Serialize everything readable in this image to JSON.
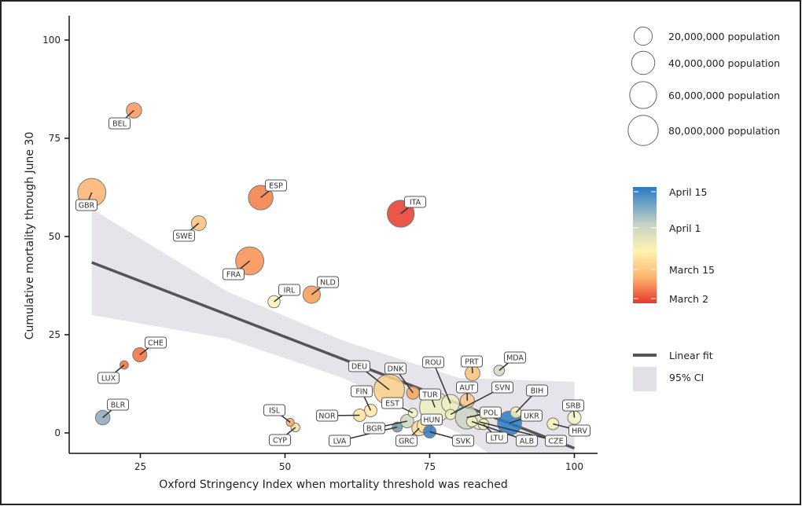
{
  "chart_data": {
    "type": "scatter",
    "xlabel": "Oxford Stringency Index when mortality threshold was reached",
    "ylabel": "Cumulative mortality through June 30",
    "xlim": [
      12.7,
      104
    ],
    "ylim": [
      -5,
      106
    ],
    "xticks": [
      25,
      50,
      75,
      100
    ],
    "yticks": [
      0,
      25,
      50,
      75,
      100
    ],
    "grid": false,
    "points": [
      {
        "code": "BEL",
        "x": 23.9,
        "y": 82.1,
        "population_millions": 11.5,
        "color": "#f9955a"
      },
      {
        "code": "GBR",
        "x": 16.6,
        "y": 61.2,
        "population_millions": 67,
        "color": "#fdb26e"
      },
      {
        "code": "ESP",
        "x": 45.8,
        "y": 59.9,
        "population_millions": 47,
        "color": "#f57b42"
      },
      {
        "code": "SWE",
        "x": 35.1,
        "y": 53.4,
        "population_millions": 10.3,
        "color": "#fdbf7a"
      },
      {
        "code": "FRA",
        "x": 43.9,
        "y": 43.8,
        "population_millions": 67,
        "color": "#f98d50"
      },
      {
        "code": "ITA",
        "x": 70.0,
        "y": 55.8,
        "population_millions": 60,
        "color": "#e8372a"
      },
      {
        "code": "IRL",
        "x": 48.1,
        "y": 33.4,
        "population_millions": 4.9,
        "color": "#fbf3b5"
      },
      {
        "code": "NLD",
        "x": 54.6,
        "y": 35.2,
        "population_millions": 17.3,
        "color": "#f99a55"
      },
      {
        "code": "CHE",
        "x": 24.9,
        "y": 19.9,
        "population_millions": 8.6,
        "color": "#f26d37"
      },
      {
        "code": "LUX",
        "x": 22.2,
        "y": 17.3,
        "population_millions": 0.6,
        "color": "#f26d37"
      },
      {
        "code": "BLR",
        "x": 18.5,
        "y": 3.9,
        "population_millions": 9.4,
        "color": "#8ea8b8"
      },
      {
        "code": "ISL",
        "x": 50.9,
        "y": 2.7,
        "population_millions": 0.4,
        "color": "#f9a65c"
      },
      {
        "code": "CYP",
        "x": 51.8,
        "y": 1.4,
        "population_millions": 0.9,
        "color": "#fde09a"
      },
      {
        "code": "NOR",
        "x": 62.9,
        "y": 4.5,
        "population_millions": 5.4,
        "color": "#fde39a"
      },
      {
        "code": "FIN",
        "x": 64.8,
        "y": 5.7,
        "population_millions": 5.5,
        "color": "#fdeaa5"
      },
      {
        "code": "DEU",
        "x": 68.0,
        "y": 11.0,
        "population_millions": 83,
        "color": "#fdd08a"
      },
      {
        "code": "DNK",
        "x": 72.1,
        "y": 10.2,
        "population_millions": 5.8,
        "color": "#f9a35b"
      },
      {
        "code": "EST",
        "x": 72.1,
        "y": 5.1,
        "population_millions": 1.3,
        "color": "#f3f3bd"
      },
      {
        "code": "BGR",
        "x": 71.1,
        "y": 3.0,
        "population_millions": 7.0,
        "color": "#cdd6c0"
      },
      {
        "code": "LVA",
        "x": 69.4,
        "y": 1.5,
        "population_millions": 1.9,
        "color": "#6f97a7"
      },
      {
        "code": "TUR",
        "x": 75.9,
        "y": 6.5,
        "population_millions": 83,
        "color": "#eef0c0"
      },
      {
        "code": "GRC",
        "x": 73.2,
        "y": 1.2,
        "population_millions": 10.7,
        "color": "#fdd89a"
      },
      {
        "code": "HUN",
        "x": 74.1,
        "y": 1.9,
        "population_millions": 9.8,
        "color": "#fde3a0"
      },
      {
        "code": "SVK",
        "x": 75.0,
        "y": 0.3,
        "population_millions": 5.5,
        "color": "#2f7bc0"
      },
      {
        "code": "ROU",
        "x": 78.6,
        "y": 7.5,
        "population_millions": 19.4,
        "color": "#eef0c0"
      },
      {
        "code": "AUT",
        "x": 81.5,
        "y": 8.2,
        "population_millions": 8.9,
        "color": "#fdc787"
      },
      {
        "code": "PRT",
        "x": 82.4,
        "y": 15.2,
        "population_millions": 10.3,
        "color": "#fdc078"
      },
      {
        "code": "MDA",
        "x": 87.0,
        "y": 15.9,
        "population_millions": 2.7,
        "color": "#d2d8c2"
      },
      {
        "code": "SVN",
        "x": 78.6,
        "y": 4.7,
        "population_millions": 2.1,
        "color": "#f6f2be"
      },
      {
        "code": "POL",
        "x": 81.4,
        "y": 3.9,
        "population_millions": 38,
        "color": "#ccd5c0"
      },
      {
        "code": "CZE",
        "x": 83.6,
        "y": 2.8,
        "population_millions": 10.7,
        "color": "#f4f0b8"
      },
      {
        "code": "LTU",
        "x": 84.3,
        "y": 2.2,
        "population_millions": 2.8,
        "color": "#f7f2b8"
      },
      {
        "code": "ALB",
        "x": 82.3,
        "y": 2.9,
        "population_millions": 2.9,
        "color": "#f4f2c0"
      },
      {
        "code": "BIH",
        "x": 89.9,
        "y": 5.2,
        "population_millions": 3.3,
        "color": "#f6f0b8"
      },
      {
        "code": "UKR",
        "x": 88.8,
        "y": 2.5,
        "population_millions": 44,
        "color": "#2a7bc4"
      },
      {
        "code": "HRV",
        "x": 96.3,
        "y": 2.3,
        "population_millions": 4.1,
        "color": "#f6f2bc"
      },
      {
        "code": "SRB",
        "x": 100.0,
        "y": 3.9,
        "population_millions": 7.0,
        "color": "#f4f2c4"
      }
    ],
    "fit": {
      "x": [
        16.6,
        100
      ],
      "y": [
        43.4,
        -3.9
      ],
      "color": "#555555"
    },
    "ci": {
      "x": [
        16.6,
        40,
        60,
        80,
        100
      ],
      "lower": [
        30,
        24,
        14,
        0,
        -20
      ],
      "upper": [
        57,
        36,
        23.5,
        14,
        13
      ],
      "color": "#e2dfe6"
    },
    "size_legend": [
      {
        "label": "20,000,000 population",
        "population_millions": 20
      },
      {
        "label": "40,000,000 population",
        "population_millions": 40
      },
      {
        "label": "60,000,000 population",
        "population_millions": 60
      },
      {
        "label": "80,000,000 population",
        "population_millions": 80
      }
    ],
    "color_legend": {
      "labels": [
        "April 15",
        "April 1",
        "March 15",
        "March 2"
      ],
      "colors": [
        "#2a7bc4",
        "#c8d4c4",
        "#fff3b0",
        "#fdb36c",
        "#e8372a"
      ]
    },
    "line_legend": {
      "fit_label": "Linear fit",
      "ci_label": "95% CI"
    }
  }
}
